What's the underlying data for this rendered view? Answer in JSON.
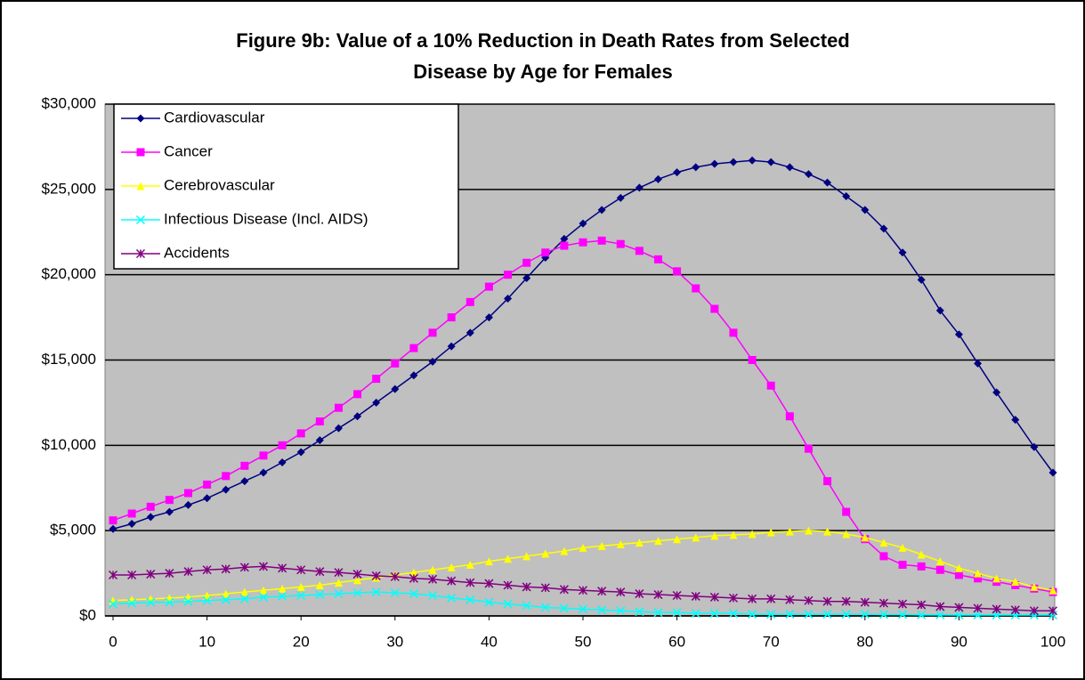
{
  "chart_data": {
    "type": "line",
    "title": "Figure 9b: Value of a 10%  Reduction in Death Rates from Selected",
    "subtitle": "Disease by Age for Females",
    "x": [
      0,
      2,
      4,
      6,
      8,
      10,
      12,
      14,
      16,
      18,
      20,
      22,
      24,
      26,
      28,
      30,
      32,
      34,
      36,
      38,
      40,
      42,
      44,
      46,
      48,
      50,
      52,
      54,
      56,
      58,
      60,
      62,
      64,
      66,
      68,
      70,
      72,
      74,
      76,
      78,
      80,
      82,
      84,
      86,
      88,
      90,
      92,
      94,
      96,
      98,
      100
    ],
    "series": [
      {
        "name": "Cardiovascular",
        "color": "#000080",
        "marker": "diamond",
        "values": [
          5100,
          5400,
          5800,
          6100,
          6500,
          6900,
          7400,
          7900,
          8400,
          9000,
          9600,
          10300,
          11000,
          11700,
          12500,
          13300,
          14100,
          14900,
          15800,
          16600,
          17500,
          18600,
          19800,
          21000,
          22100,
          23000,
          23800,
          24500,
          25100,
          25600,
          26000,
          26300,
          26500,
          26600,
          26700,
          26600,
          26300,
          25900,
          25400,
          24600,
          23800,
          22700,
          21300,
          19700,
          17900,
          16500,
          14800,
          13100,
          11500,
          9900,
          8400
        ]
      },
      {
        "name": "Cancer",
        "color": "#ff00ff",
        "marker": "square",
        "values": [
          5600,
          6000,
          6400,
          6800,
          7200,
          7700,
          8200,
          8800,
          9400,
          10000,
          10700,
          11400,
          12200,
          13000,
          13900,
          14800,
          15700,
          16600,
          17500,
          18400,
          19300,
          20000,
          20700,
          21300,
          21700,
          21900,
          22000,
          21800,
          21400,
          20900,
          20200,
          19200,
          18000,
          16600,
          15000,
          13500,
          11700,
          9800,
          7900,
          6100,
          4500,
          3500,
          3000,
          2900,
          2700,
          2400,
          2200,
          2000,
          1800,
          1600,
          1400
        ]
      },
      {
        "name": "Cerebrovascular",
        "color": "#ffff00",
        "marker": "triangle",
        "values": [
          900,
          950,
          1000,
          1050,
          1100,
          1200,
          1300,
          1400,
          1500,
          1600,
          1700,
          1800,
          1950,
          2100,
          2250,
          2400,
          2550,
          2700,
          2850,
          3000,
          3200,
          3350,
          3500,
          3650,
          3800,
          4000,
          4100,
          4200,
          4300,
          4400,
          4500,
          4600,
          4700,
          4750,
          4800,
          4900,
          4950,
          5000,
          4950,
          4800,
          4600,
          4300,
          4000,
          3600,
          3200,
          2800,
          2500,
          2200,
          2000,
          1700,
          1500
        ]
      },
      {
        "name": "Infectious Disease (Incl. AIDS)",
        "color": "#00ffff",
        "marker": "x",
        "values": [
          700,
          750,
          800,
          800,
          850,
          900,
          950,
          1000,
          1100,
          1150,
          1200,
          1250,
          1300,
          1350,
          1400,
          1350,
          1300,
          1200,
          1050,
          950,
          800,
          700,
          600,
          500,
          450,
          400,
          350,
          300,
          250,
          200,
          200,
          150,
          150,
          150,
          100,
          100,
          100,
          100,
          100,
          100,
          100,
          80,
          80,
          60,
          60,
          50,
          50,
          50,
          50,
          50,
          50
        ]
      },
      {
        "name": "Accidents",
        "color": "#800080",
        "marker": "star",
        "values": [
          2400,
          2400,
          2450,
          2500,
          2600,
          2700,
          2750,
          2850,
          2900,
          2800,
          2700,
          2600,
          2550,
          2450,
          2350,
          2300,
          2200,
          2150,
          2050,
          1950,
          1900,
          1800,
          1700,
          1650,
          1550,
          1500,
          1450,
          1400,
          1300,
          1250,
          1200,
          1150,
          1100,
          1050,
          1000,
          1000,
          950,
          900,
          850,
          850,
          800,
          750,
          700,
          650,
          550,
          500,
          450,
          400,
          350,
          300,
          300
        ]
      }
    ],
    "xlim": [
      0,
      100
    ],
    "xticks": [
      0,
      10,
      20,
      30,
      40,
      50,
      60,
      70,
      80,
      90,
      100
    ],
    "ylim": [
      0,
      30000
    ],
    "yticks": [
      {
        "value": 0,
        "label": "$0"
      },
      {
        "value": 5000,
        "label": "$5,000"
      },
      {
        "value": 10000,
        "label": "$10,000"
      },
      {
        "value": 15000,
        "label": "$15,000"
      },
      {
        "value": 20000,
        "label": "$20,000"
      },
      {
        "value": 25000,
        "label": "$25,000"
      },
      {
        "value": 30000,
        "label": "$30,000"
      }
    ],
    "grid": true,
    "plot_background": "#c0c0c0",
    "legend": "upper left"
  }
}
